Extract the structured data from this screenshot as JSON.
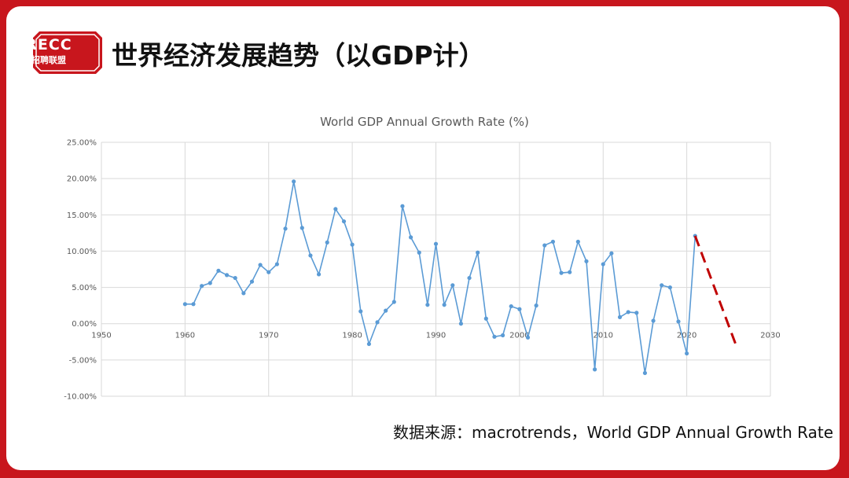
{
  "logo": {
    "top": "RECC",
    "bottom": "招聘联盟",
    "color": "#c8161d"
  },
  "page_title": "世界经济发展趋势（以GDP计）",
  "source_text": "数据来源：macrotrends，World GDP Annual Growth Rate",
  "colors": {
    "frame": "#c8161d",
    "line": "#5b9bd5",
    "projection": "#c00000"
  },
  "chart_data": {
    "type": "scatter",
    "title": "World GDP Annual Growth Rate (%)",
    "xlim": [
      1950,
      2030
    ],
    "xticks": [
      1950,
      1960,
      1970,
      1980,
      1990,
      2000,
      2010,
      2020,
      2030
    ],
    "ylim": [
      -10,
      25
    ],
    "yticks": [
      25,
      20,
      15,
      10,
      5,
      0,
      -5,
      -10
    ],
    "ytick_labels": [
      "25.00%",
      "20.00%",
      "15.00%",
      "10.00%",
      "5.00%",
      "0.00%",
      "-5.00%",
      "-10.00%"
    ],
    "grid": true,
    "series": [
      {
        "x": [
          1960,
          1961,
          1962,
          1963,
          1964,
          1965,
          1966,
          1967,
          1968,
          1969,
          1970,
          1971,
          1972,
          1973,
          1974,
          1975,
          1976,
          1977,
          1978,
          1979,
          1980,
          1981,
          1982,
          1983,
          1984,
          1985,
          1986,
          1987,
          1988,
          1989,
          1990,
          1991,
          1992,
          1993,
          1994,
          1995,
          1996,
          1997,
          1998,
          1999,
          2000,
          2001,
          2002,
          2003,
          2004,
          2005,
          2006,
          2007,
          2008,
          2009,
          2010,
          2011,
          2012,
          2013,
          2014,
          2015,
          2016,
          2017,
          2018,
          2019,
          2020,
          2021
        ],
        "y": [
          2.7,
          2.7,
          5.2,
          5.6,
          7.3,
          6.7,
          6.3,
          4.2,
          5.8,
          8.1,
          7.1,
          8.2,
          13.1,
          19.6,
          13.2,
          9.4,
          6.8,
          11.2,
          15.8,
          14.1,
          10.9,
          1.7,
          -2.8,
          0.2,
          1.8,
          3.0,
          16.2,
          11.9,
          9.8,
          2.6,
          11.0,
          2.6,
          5.3,
          0.0,
          6.3,
          9.8,
          0.7,
          -1.8,
          -1.6,
          2.4,
          2.0,
          -1.9,
          2.5,
          10.8,
          11.3,
          7.0,
          7.1,
          11.3,
          8.6,
          -6.3,
          8.2,
          9.7,
          0.9,
          1.6,
          1.5,
          -6.8,
          0.4,
          5.3,
          5.0,
          0.3,
          -4.1,
          12.1
        ]
      }
    ],
    "projection": {
      "x": [
        2021,
        2026
      ],
      "y": [
        12.1,
        -3.3
      ]
    }
  }
}
